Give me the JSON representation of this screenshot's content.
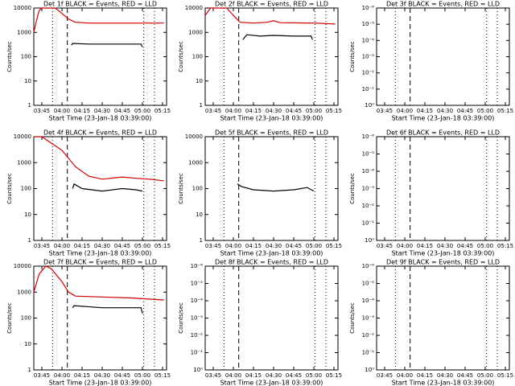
{
  "chart_data": [
    {
      "type": "line",
      "title": "Det 1f BLACK = Events, RED = LLD",
      "xlabel": "Start Time (23-Jan-18 03:39:00)",
      "ylabel": "Counts/sec",
      "xlim": [
        "03:39",
        "05:18"
      ],
      "xticks": [
        "03:45",
        "04:00",
        "04:15",
        "04:30",
        "04:45",
        "05:00",
        "05:15"
      ],
      "ylim": [
        1,
        10000
      ],
      "yticks": [
        1,
        10,
        100,
        1000,
        10000
      ],
      "log_y": true,
      "dotted_lines": [
        "03:53",
        "05:01",
        "05:09"
      ],
      "dashed_lines": [
        "04:04"
      ],
      "series": [
        {
          "color": "#d00000",
          "x": [
            "03:39",
            "03:41",
            "03:43",
            "03:45",
            "03:55",
            "04:00",
            "04:05",
            "04:10",
            "04:20",
            "04:40",
            "05:00",
            "05:16"
          ],
          "values": [
            1000,
            3000,
            8000,
            10000,
            10000,
            6000,
            3500,
            2600,
            2400,
            2400,
            2400,
            2400
          ]
        },
        {
          "color": "#000000",
          "x": [
            "04:07",
            "04:08",
            "04:20",
            "04:40",
            "04:59",
            "05:00"
          ],
          "values": [
            300,
            350,
            330,
            330,
            330,
            250
          ]
        }
      ]
    },
    {
      "type": "line",
      "title": "Det 2f BLACK = Events, RED = LLD",
      "xlabel": "Start Time (23-Jan-18 03:39:00)",
      "ylabel": "Counts/sec",
      "xlim": [
        "03:39",
        "05:18"
      ],
      "xticks": [
        "03:45",
        "04:00",
        "04:15",
        "04:30",
        "04:45",
        "05:00",
        "05:15"
      ],
      "ylim": [
        1,
        10000
      ],
      "yticks": [
        1,
        10,
        100,
        1000,
        10000
      ],
      "log_y": true,
      "dotted_lines": [
        "03:53",
        "05:01",
        "05:09"
      ],
      "dashed_lines": [
        "04:04"
      ],
      "series": [
        {
          "color": "#d00000",
          "x": [
            "03:39",
            "03:43",
            "03:55",
            "04:00",
            "04:05",
            "04:15",
            "04:25",
            "04:30",
            "04:35",
            "05:00",
            "05:16"
          ],
          "values": [
            5000,
            10000,
            10000,
            5000,
            2600,
            2400,
            2600,
            3000,
            2500,
            2400,
            2200
          ]
        },
        {
          "color": "#000000",
          "x": [
            "04:07",
            "04:10",
            "04:20",
            "04:30",
            "04:45",
            "04:58",
            "04:59"
          ],
          "values": [
            500,
            800,
            700,
            750,
            700,
            700,
            500
          ]
        }
      ]
    },
    {
      "type": "line",
      "title": "Det 3f BLACK = Events, RED = LLD",
      "xlabel": "Start Time (23-Jan-18 03:39:00)",
      "ylabel": "Counts/sec",
      "xlim": [
        "03:39",
        "05:18"
      ],
      "xticks": [
        "03:45",
        "04:00",
        "04:15",
        "04:30",
        "04:45",
        "05:00",
        "05:15"
      ],
      "ylim": [
        1,
        1e-06
      ],
      "yticks": [
        {
          "value": 1e-06,
          "label": "10⁻⁶"
        },
        {
          "value": 1e-05,
          "label": "10⁻⁵"
        },
        {
          "value": 0.0001,
          "label": "10⁻⁴"
        },
        {
          "value": 0.001,
          "label": "10⁻³"
        },
        {
          "value": 0.01,
          "label": "10⁻²"
        },
        {
          "value": 0.1,
          "label": "10⁻¹"
        },
        {
          "value": 1,
          "label": "10⁰"
        }
      ],
      "log_y": true,
      "dotted_lines": [
        "03:53",
        "05:01",
        "05:09"
      ],
      "dashed_lines": [
        "04:04"
      ],
      "series": []
    },
    {
      "type": "line",
      "title": "Det 4f BLACK = Events, RED = LLD",
      "xlabel": "Start Time (23-Jan-18 03:39:00)",
      "ylabel": "Counts/sec",
      "xlim": [
        "03:39",
        "05:18"
      ],
      "xticks": [
        "03:45",
        "04:00",
        "04:15",
        "04:30",
        "04:45",
        "05:00",
        "05:15"
      ],
      "ylim": [
        1,
        10000
      ],
      "yticks": [
        1,
        10,
        100,
        1000,
        10000
      ],
      "log_y": true,
      "dotted_lines": [
        "03:53",
        "05:01",
        "05:09"
      ],
      "dashed_lines": [
        "04:04"
      ],
      "series": [
        {
          "color": "#d00000",
          "x": [
            "03:39",
            "03:45",
            "04:00",
            "04:10",
            "04:20",
            "04:30",
            "04:45",
            "04:55",
            "05:05",
            "05:16"
          ],
          "values": [
            10000,
            10000,
            3000,
            700,
            300,
            230,
            280,
            250,
            230,
            200
          ]
        },
        {
          "color": "#000000",
          "x": [
            "04:08",
            "04:09",
            "04:15",
            "04:30",
            "04:45",
            "04:55",
            "05:00"
          ],
          "values": [
            100,
            150,
            100,
            80,
            100,
            90,
            80
          ]
        }
      ]
    },
    {
      "type": "line",
      "title": "Det 5f BLACK = Events, RED = LLD",
      "xlabel": "Start Time (23-Jan-18 03:39:00)",
      "ylabel": "Counts/sec",
      "xlim": [
        "03:39",
        "05:18"
      ],
      "xticks": [
        "03:45",
        "04:00",
        "04:15",
        "04:30",
        "04:45",
        "05:00",
        "05:15"
      ],
      "ylim": [
        1,
        10000
      ],
      "yticks": [
        1,
        10,
        100,
        1000,
        10000
      ],
      "log_y": true,
      "dotted_lines": [
        "03:53",
        "05:01",
        "05:09"
      ],
      "dashed_lines": [
        "04:04"
      ],
      "series": [
        {
          "color": "#000000",
          "x": [
            "04:03",
            "04:06",
            "04:15",
            "04:30",
            "04:45",
            "04:55",
            "05:00"
          ],
          "values": [
            150,
            120,
            90,
            80,
            90,
            110,
            80
          ]
        }
      ]
    },
    {
      "type": "line",
      "title": "Det 6f BLACK = Events, RED = LLD",
      "xlabel": "Start Time (23-Jan-18 03:39:00)",
      "ylabel": "Counts/sec",
      "xlim": [
        "03:39",
        "05:18"
      ],
      "xticks": [
        "03:45",
        "04:00",
        "04:15",
        "04:30",
        "04:45",
        "05:00",
        "05:15"
      ],
      "ylim": [
        1,
        1e-06
      ],
      "yticks": [
        {
          "value": 1e-06,
          "label": "10⁻⁶"
        },
        {
          "value": 1e-05,
          "label": "10⁻⁵"
        },
        {
          "value": 0.0001,
          "label": "10⁻⁴"
        },
        {
          "value": 0.001,
          "label": "10⁻³"
        },
        {
          "value": 0.01,
          "label": "10⁻²"
        },
        {
          "value": 0.1,
          "label": "10⁻¹"
        },
        {
          "value": 1,
          "label": "10⁰"
        }
      ],
      "log_y": true,
      "dotted_lines": [
        "03:53",
        "05:01",
        "05:09"
      ],
      "dashed_lines": [
        "04:04"
      ],
      "series": []
    },
    {
      "type": "line",
      "title": "Det 7f BLACK = Events, RED = LLD",
      "xlabel": "Start Time (23-Jan-18 03:39:00)",
      "ylabel": "Counts/sec",
      "xlim": [
        "03:39",
        "05:18"
      ],
      "xticks": [
        "03:45",
        "04:00",
        "04:15",
        "04:30",
        "04:45",
        "05:00",
        "05:15"
      ],
      "ylim": [
        1,
        10000
      ],
      "yticks": [
        1,
        10,
        100,
        1000,
        10000
      ],
      "log_y": true,
      "dotted_lines": [
        "03:53",
        "05:01",
        "05:09"
      ],
      "dashed_lines": [
        "04:04"
      ],
      "series": [
        {
          "color": "#d00000",
          "x": [
            "03:39",
            "03:43",
            "03:48",
            "03:52",
            "04:00",
            "04:05",
            "04:10",
            "04:30",
            "04:50",
            "05:16"
          ],
          "values": [
            1000,
            5000,
            10000,
            8000,
            2500,
            1000,
            700,
            650,
            600,
            500
          ]
        },
        {
          "color": "#000000",
          "x": [
            "04:08",
            "04:09",
            "04:30",
            "04:59",
            "05:00"
          ],
          "values": [
            250,
            300,
            250,
            250,
            150
          ]
        }
      ]
    },
    {
      "type": "line",
      "title": "Det 8f BLACK = Events, RED = LLD",
      "xlabel": "Start Time (23-Jan-18 03:39:00)",
      "ylabel": "Counts/sec",
      "xlim": [
        "03:39",
        "05:18"
      ],
      "xticks": [
        "03:45",
        "04:00",
        "04:15",
        "04:30",
        "04:45",
        "05:00",
        "05:15"
      ],
      "ylim": [
        1,
        1e-06
      ],
      "yticks": [
        {
          "value": 1e-06,
          "label": "10⁻⁶"
        },
        {
          "value": 1e-05,
          "label": "10⁻⁵"
        },
        {
          "value": 0.0001,
          "label": "10⁻⁴"
        },
        {
          "value": 0.001,
          "label": "10⁻³"
        },
        {
          "value": 0.01,
          "label": "10⁻²"
        },
        {
          "value": 0.1,
          "label": "10⁻¹"
        },
        {
          "value": 1,
          "label": "10⁰"
        }
      ],
      "log_y": true,
      "dotted_lines": [
        "03:53",
        "05:01",
        "05:09"
      ],
      "dashed_lines": [
        "04:04"
      ],
      "series": []
    },
    {
      "type": "line",
      "title": "Det 9f BLACK = Events, RED = LLD",
      "xlabel": "Start Time (23-Jan-18 03:39:00)",
      "ylabel": "Counts/sec",
      "xlim": [
        "03:39",
        "05:18"
      ],
      "xticks": [
        "03:45",
        "04:00",
        "04:15",
        "04:30",
        "04:45",
        "05:00",
        "05:15"
      ],
      "ylim": [
        1,
        1e-06
      ],
      "yticks": [
        {
          "value": 1e-06,
          "label": "10⁻⁶"
        },
        {
          "value": 1e-05,
          "label": "10⁻⁵"
        },
        {
          "value": 0.0001,
          "label": "10⁻⁴"
        },
        {
          "value": 0.001,
          "label": "10⁻³"
        },
        {
          "value": 0.01,
          "label": "10⁻²"
        },
        {
          "value": 0.1,
          "label": "10⁻¹"
        },
        {
          "value": 1,
          "label": "10⁰"
        }
      ],
      "log_y": true,
      "dotted_lines": [
        "03:53",
        "05:01",
        "05:09"
      ],
      "dashed_lines": [
        "04:04"
      ],
      "series": []
    }
  ]
}
